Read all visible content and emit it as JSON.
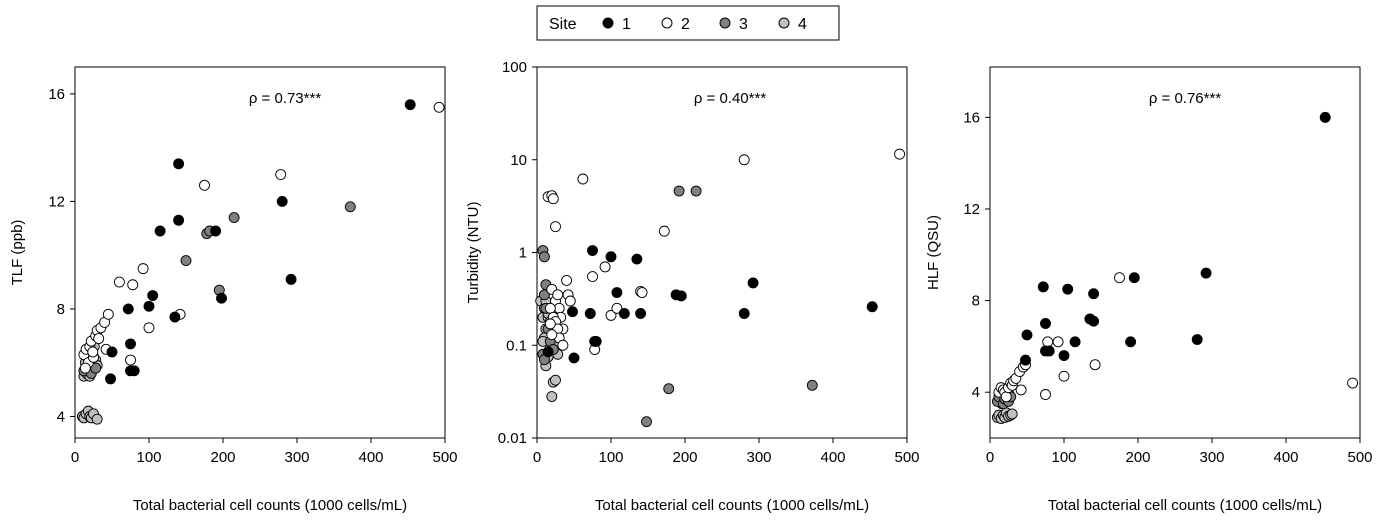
{
  "legend": {
    "title": "Site",
    "entries": [
      {
        "label": "1",
        "color": "#000000"
      },
      {
        "label": "2",
        "color": "#ffffff"
      },
      {
        "label": "3",
        "color": "#808080"
      },
      {
        "label": "4",
        "color": "#c0c0c0"
      }
    ]
  },
  "chart_data": [
    {
      "type": "scatter",
      "xlabel": "Total bacterial cell counts (1000 cells/mL)",
      "ylabel": "TLF (ppb)",
      "annotation": "ρ = 0.73***",
      "xlim": [
        0,
        500
      ],
      "ylim": [
        3.2,
        17
      ],
      "y_scale": "linear",
      "xticks": [
        0,
        100,
        200,
        300,
        400,
        500
      ],
      "yticks": [
        4,
        8,
        12,
        16
      ],
      "series": [
        {
          "site": "1",
          "color": "#000000",
          "points": [
            [
              48,
              5.4
            ],
            [
              50,
              6.4
            ],
            [
              72,
              8.0
            ],
            [
              75,
              6.7
            ],
            [
              75,
              5.7
            ],
            [
              80,
              5.7
            ],
            [
              100,
              8.1
            ],
            [
              105,
              8.5
            ],
            [
              115,
              10.9
            ],
            [
              135,
              7.7
            ],
            [
              140,
              13.4
            ],
            [
              140,
              11.3
            ],
            [
              190,
              10.9
            ],
            [
              198,
              8.4
            ],
            [
              280,
              12.0
            ],
            [
              292,
              9.1
            ],
            [
              453,
              15.6
            ]
          ]
        },
        {
          "site": "2",
          "color": "#ffffff",
          "points": [
            [
              12,
              6.3
            ],
            [
              15,
              6.5
            ],
            [
              18,
              6.0
            ],
            [
              20,
              6.6
            ],
            [
              22,
              6.8
            ],
            [
              25,
              6.2
            ],
            [
              28,
              7.0
            ],
            [
              30,
              7.2
            ],
            [
              32,
              6.9
            ],
            [
              35,
              7.3
            ],
            [
              40,
              7.5
            ],
            [
              42,
              6.5
            ],
            [
              45,
              7.8
            ],
            [
              60,
              9.0
            ],
            [
              75,
              6.1
            ],
            [
              78,
              8.9
            ],
            [
              92,
              9.5
            ],
            [
              100,
              7.3
            ],
            [
              142,
              7.8
            ],
            [
              175,
              12.6
            ],
            [
              278,
              13.0
            ],
            [
              492,
              15.5
            ],
            [
              14,
              5.8
            ],
            [
              24,
              6.4
            ]
          ]
        },
        {
          "site": "3",
          "color": "#808080",
          "points": [
            [
              12,
              5.7
            ],
            [
              15,
              5.8
            ],
            [
              18,
              6.1
            ],
            [
              20,
              5.9
            ],
            [
              22,
              5.6
            ],
            [
              25,
              6.2
            ],
            [
              28,
              5.8
            ],
            [
              150,
              9.8
            ],
            [
              178,
              10.8
            ],
            [
              182,
              10.9
            ],
            [
              195,
              8.7
            ],
            [
              215,
              11.4
            ],
            [
              372,
              11.8
            ]
          ]
        },
        {
          "site": "4",
          "color": "#c0c0c0",
          "points": [
            [
              10,
              4.0
            ],
            [
              12,
              3.95
            ],
            [
              15,
              4.1
            ],
            [
              18,
              4.2
            ],
            [
              20,
              4.0
            ],
            [
              22,
              3.95
            ],
            [
              25,
              4.1
            ],
            [
              30,
              3.9
            ],
            [
              18,
              6.1
            ],
            [
              22,
              5.9
            ],
            [
              25,
              6.0
            ],
            [
              28,
              6.1
            ],
            [
              12,
              5.5
            ],
            [
              16,
              5.6
            ],
            [
              20,
              5.5
            ],
            [
              14,
              6.0
            ],
            [
              24,
              6.3
            ],
            [
              26,
              6.6
            ],
            [
              30,
              5.9
            ]
          ]
        }
      ]
    },
    {
      "type": "scatter",
      "xlabel": "Total bacterial cell counts (1000 cells/mL)",
      "ylabel": "Turbidity (NTU)",
      "annotation": "ρ = 0.40***",
      "xlim": [
        0,
        500
      ],
      "ylim": [
        0.01,
        100
      ],
      "y_scale": "log",
      "xticks": [
        0,
        100,
        200,
        300,
        400,
        500
      ],
      "yticks": [
        0.01,
        0.1,
        1,
        10,
        100
      ],
      "ytick_labels": [
        "0.01",
        "0.1",
        "1",
        "10",
        "100"
      ],
      "series": [
        {
          "site": "1",
          "color": "#000000",
          "points": [
            [
              15,
              0.085
            ],
            [
              48,
              0.23
            ],
            [
              50,
              0.073
            ],
            [
              72,
              0.22
            ],
            [
              75,
              1.05
            ],
            [
              78,
              0.11
            ],
            [
              80,
              0.11
            ],
            [
              100,
              0.9
            ],
            [
              108,
              0.37
            ],
            [
              118,
              0.22
            ],
            [
              135,
              0.85
            ],
            [
              140,
              0.22
            ],
            [
              188,
              0.35
            ],
            [
              195,
              0.34
            ],
            [
              280,
              0.22
            ],
            [
              292,
              0.47
            ],
            [
              453,
              0.26
            ]
          ]
        },
        {
          "site": "2",
          "color": "#ffffff",
          "points": [
            [
              15,
              4.0
            ],
            [
              20,
              4.1
            ],
            [
              22,
              3.8
            ],
            [
              25,
              1.9
            ],
            [
              20,
              0.4
            ],
            [
              25,
              0.3
            ],
            [
              28,
              0.35
            ],
            [
              30,
              0.25
            ],
            [
              32,
              0.2
            ],
            [
              35,
              0.15
            ],
            [
              40,
              0.5
            ],
            [
              42,
              0.35
            ],
            [
              45,
              0.3
            ],
            [
              62,
              6.2
            ],
            [
              75,
              0.55
            ],
            [
              78,
              0.09
            ],
            [
              92,
              0.7
            ],
            [
              100,
              0.21
            ],
            [
              108,
              0.25
            ],
            [
              140,
              0.38
            ],
            [
              142,
              0.37
            ],
            [
              172,
              1.7
            ],
            [
              280,
              10.0
            ],
            [
              490,
              11.5
            ],
            [
              18,
              0.25
            ],
            [
              22,
              0.2
            ],
            [
              25,
              0.18
            ],
            [
              28,
              0.15
            ],
            [
              30,
              0.12
            ],
            [
              35,
              0.1
            ],
            [
              18,
              0.17
            ],
            [
              20,
              0.13
            ]
          ]
        },
        {
          "site": "3",
          "color": "#808080",
          "points": [
            [
              8,
              1.05
            ],
            [
              10,
              0.9
            ],
            [
              12,
              0.45
            ],
            [
              10,
              0.35
            ],
            [
              12,
              0.25
            ],
            [
              15,
              0.15
            ],
            [
              8,
              0.08
            ],
            [
              10,
              0.07
            ],
            [
              18,
              0.11
            ],
            [
              22,
              0.09
            ],
            [
              148,
              0.015
            ],
            [
              178,
              0.034
            ],
            [
              192,
              4.6
            ],
            [
              215,
              4.6
            ],
            [
              372,
              0.037
            ]
          ]
        },
        {
          "site": "4",
          "color": "#c0c0c0",
          "points": [
            [
              5,
              0.3
            ],
            [
              8,
              0.2
            ],
            [
              10,
              0.25
            ],
            [
              12,
              0.15
            ],
            [
              15,
              0.2
            ],
            [
              18,
              0.1
            ],
            [
              20,
              0.09
            ],
            [
              22,
              0.04
            ],
            [
              25,
              0.042
            ],
            [
              20,
              0.028
            ],
            [
              12,
              0.06
            ],
            [
              15,
              0.075
            ],
            [
              10,
              0.12
            ],
            [
              8,
              0.11
            ],
            [
              12,
              0.3
            ],
            [
              15,
              0.22
            ],
            [
              18,
              0.18
            ],
            [
              22,
              0.13
            ],
            [
              25,
              0.1
            ],
            [
              28,
              0.08
            ]
          ]
        }
      ]
    },
    {
      "type": "scatter",
      "xlabel": "Total bacterial cell counts (1000 cells/mL)",
      "ylabel": "HLF (QSU)",
      "annotation": "ρ = 0.76***",
      "xlim": [
        0,
        500
      ],
      "ylim": [
        2,
        18.2
      ],
      "y_scale": "linear",
      "xticks": [
        0,
        100,
        200,
        300,
        400,
        500
      ],
      "yticks": [
        4,
        8,
        12,
        16
      ],
      "series": [
        {
          "site": "1",
          "color": "#000000",
          "points": [
            [
              48,
              5.4
            ],
            [
              50,
              6.5
            ],
            [
              72,
              8.6
            ],
            [
              75,
              7.0
            ],
            [
              75,
              5.8
            ],
            [
              80,
              5.8
            ],
            [
              100,
              5.6
            ],
            [
              105,
              8.5
            ],
            [
              115,
              6.2
            ],
            [
              135,
              7.2
            ],
            [
              140,
              7.1
            ],
            [
              140,
              8.3
            ],
            [
              190,
              6.2
            ],
            [
              195,
              9.0
            ],
            [
              280,
              6.3
            ],
            [
              292,
              9.2
            ],
            [
              453,
              16.0
            ]
          ]
        },
        {
          "site": "2",
          "color": "#ffffff",
          "points": [
            [
              12,
              4.0
            ],
            [
              15,
              4.2
            ],
            [
              18,
              4.1
            ],
            [
              20,
              4.0
            ],
            [
              22,
              3.8
            ],
            [
              25,
              4.2
            ],
            [
              28,
              4.4
            ],
            [
              30,
              4.3
            ],
            [
              32,
              4.5
            ],
            [
              35,
              4.6
            ],
            [
              40,
              4.9
            ],
            [
              42,
              4.1
            ],
            [
              45,
              5.1
            ],
            [
              48,
              5.2
            ],
            [
              75,
              3.9
            ],
            [
              78,
              6.2
            ],
            [
              92,
              6.2
            ],
            [
              100,
              4.7
            ],
            [
              142,
              5.2
            ],
            [
              175,
              9.0
            ],
            [
              490,
              4.4
            ]
          ]
        },
        {
          "site": "3",
          "color": "#808080",
          "points": [
            [
              10,
              3.6
            ],
            [
              12,
              3.8
            ],
            [
              15,
              4.0
            ],
            [
              18,
              3.5
            ],
            [
              20,
              3.7
            ],
            [
              22,
              3.9
            ],
            [
              25,
              3.6
            ],
            [
              28,
              3.8
            ]
          ]
        },
        {
          "site": "4",
          "color": "#c0c0c0",
          "points": [
            [
              10,
              2.9
            ],
            [
              12,
              3.0
            ],
            [
              15,
              2.85
            ],
            [
              18,
              3.0
            ],
            [
              20,
              2.9
            ],
            [
              22,
              3.1
            ],
            [
              25,
              2.95
            ],
            [
              28,
              3.0
            ],
            [
              30,
              3.05
            ],
            [
              14,
              3.7
            ],
            [
              16,
              3.5
            ],
            [
              18,
              3.6
            ],
            [
              20,
              3.8
            ],
            [
              24,
              3.7
            ],
            [
              26,
              3.9
            ]
          ]
        }
      ]
    }
  ]
}
